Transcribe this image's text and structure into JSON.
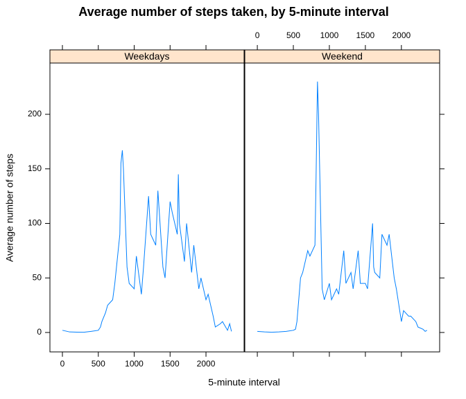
{
  "chart_data": {
    "type": "line",
    "title": "Average number of steps taken, by 5-minute interval",
    "xlabel": "5-minute interval",
    "ylabel": "Average number of steps",
    "x": [
      0,
      100,
      200,
      300,
      400,
      500,
      530,
      550,
      600,
      630,
      700,
      730,
      800,
      815,
      835,
      850,
      900,
      930,
      1000,
      1030,
      1100,
      1130,
      1200,
      1230,
      1300,
      1330,
      1400,
      1430,
      1500,
      1530,
      1600,
      1615,
      1630,
      1700,
      1730,
      1800,
      1830,
      1900,
      1930,
      2000,
      2030,
      2100,
      2130,
      2200,
      2230,
      2300,
      2330,
      2355
    ],
    "series": [
      {
        "name": "Weekdays",
        "color": "#0080ff",
        "values": [
          2,
          0.5,
          0.3,
          0.2,
          1,
          2,
          5,
          10,
          18,
          25,
          30,
          45,
          90,
          155,
          167,
          150,
          60,
          45,
          40,
          70,
          35,
          60,
          125,
          90,
          80,
          130,
          60,
          50,
          120,
          110,
          90,
          145,
          100,
          65,
          100,
          55,
          80,
          40,
          50,
          30,
          35,
          15,
          5,
          8,
          10,
          2,
          8,
          1
        ]
      },
      {
        "name": "Weekend",
        "color": "#0080ff",
        "values": [
          1,
          0.5,
          0.2,
          0.5,
          1,
          2,
          3,
          10,
          50,
          55,
          75,
          70,
          80,
          140,
          230,
          200,
          40,
          30,
          45,
          30,
          40,
          35,
          75,
          45,
          55,
          40,
          75,
          45,
          45,
          40,
          100,
          60,
          55,
          50,
          90,
          80,
          90,
          50,
          40,
          10,
          20,
          15,
          15,
          10,
          5,
          3,
          1,
          2
        ]
      }
    ],
    "xlim": [
      -174,
      2531
    ],
    "ylim": [
      -17.8,
      247
    ],
    "xticks": [
      0,
      500,
      1000,
      1500,
      2000
    ],
    "yticks": [
      0,
      50,
      100,
      150,
      200
    ]
  }
}
